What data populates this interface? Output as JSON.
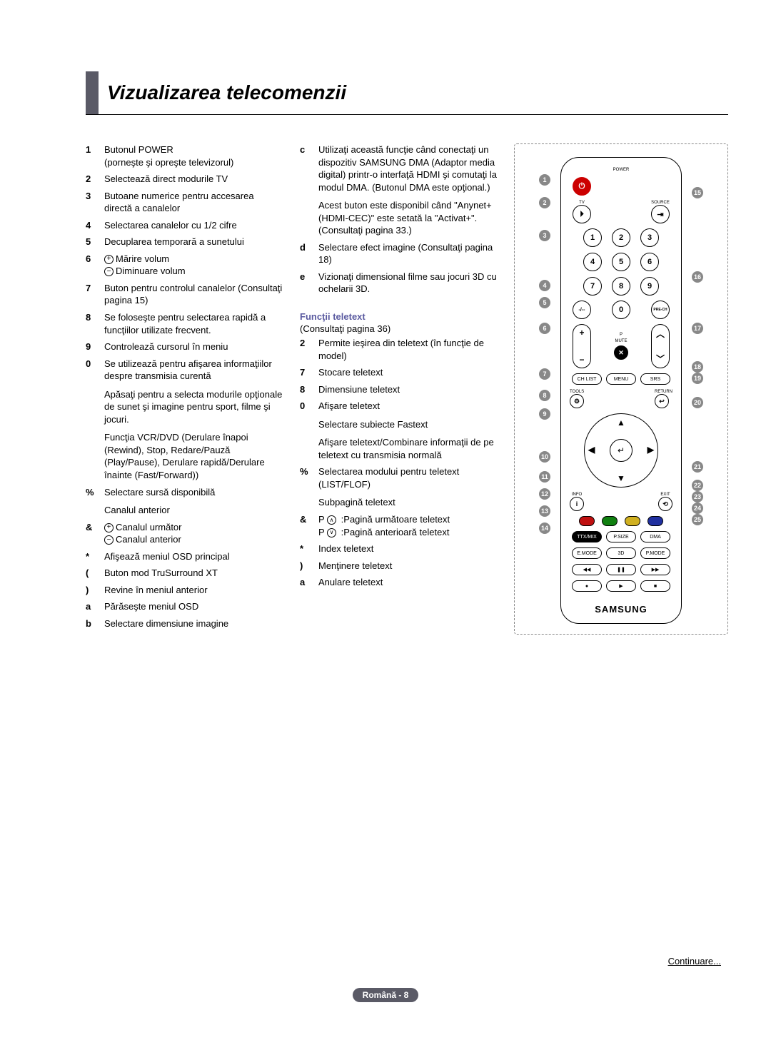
{
  "title": "Vizualizarea telecomenzii",
  "col1": [
    {
      "n": "1",
      "t": "Butonul POWER",
      "sub": "(porneşte şi opreşte televizorul)"
    },
    {
      "n": "2",
      "t": "Selectează direct modurile TV"
    },
    {
      "n": "3",
      "t": "Butoane numerice pentru accesarea directă a canalelor"
    },
    {
      "n": "4",
      "t": "Selectarea canalelor cu 1/2 cifre"
    },
    {
      "n": "5",
      "t": "Decuplarea temporară a sunetului"
    },
    {
      "n": "6",
      "t": "",
      "plusminus": true,
      "plus": "Mărire volum",
      "minus": "Diminuare volum"
    },
    {
      "n": "7",
      "t": "Buton pentru controlul canalelor (Consultaţi pagina 15)"
    },
    {
      "n": "8",
      "t": "Se foloseşte pentru selectarea rapidă a funcţiilor utilizate frecvent."
    },
    {
      "n": "9",
      "t": "Controlează cursorul în meniu"
    },
    {
      "n": "0",
      "t": "Se utilizează pentru afişarea informaţiilor despre transmisia curentă",
      "extra": [
        "Apăsaţi pentru a selecta modurile opţionale de sunet şi imagine pentru sport, filme şi jocuri.",
        "Funcţia VCR/DVD (Derulare înapoi (Rewind), Stop, Redare/Pauză (Play/Pause), Derulare rapidă/Derulare înainte (Fast/Forward))"
      ]
    },
    {
      "n": "%",
      "t": "Selectare sursă disponibilă",
      "extra": [
        "Canalul anterior"
      ]
    },
    {
      "n": "&",
      "t": "",
      "plusminus": true,
      "plus": "Canalul următor",
      "minus": "Canalul anterior"
    },
    {
      "n": "*",
      "t": "Afişează meniul OSD principal"
    },
    {
      "n": "(",
      "t": "Buton mod TruSurround XT"
    },
    {
      "n": ")",
      "t": "Revine în meniul anterior"
    },
    {
      "n": "a",
      "t": "Părăseşte meniul OSD"
    },
    {
      "n": "b",
      "t": "Selectare dimensiune imagine"
    }
  ],
  "col2_top": [
    {
      "n": "c",
      "t": "Utilizaţi această funcţie când conectaţi un dispozitiv SAMSUNG DMA (Adaptor media digital) printr-o interfaţă HDMI şi comutaţi la modul DMA. (Butonul DMA este opţional.)",
      "extra": [
        "Acest buton este disponibil când \"Anynet+ (HDMI-CEC)\" este setată la \"Activat+\". (Consultaţi pagina 33.)"
      ]
    },
    {
      "n": "d",
      "t": "Selectare efect imagine (Consultaţi pagina 18)"
    },
    {
      "n": "e",
      "t": "Vizionaţi dimensional filme sau jocuri 3D cu ochelarii 3D."
    }
  ],
  "teletext_head": "Funcţii teletext",
  "teletext_sub": "(Consultaţi pagina 36)",
  "col2_tel": [
    {
      "n": "2",
      "t": "Permite ieşirea din teletext (în funcţie de model)"
    },
    {
      "n": "7",
      "t": "Stocare teletext"
    },
    {
      "n": "8",
      "t": "Dimensiune teletext"
    },
    {
      "n": "0",
      "t": "Afişare teletext",
      "extra": [
        "Selectare subiecte Fastext",
        "Afişare teletext/Combinare informaţii de pe teletext cu transmisia normală"
      ]
    },
    {
      "n": "%",
      "t": "Selectarea modului pentru teletext (LIST/FLOF)",
      "extra": [
        "Subpagină teletext"
      ]
    },
    {
      "n": "&",
      "t": "",
      "pch": true,
      "up": "Pagină următoare teletext",
      "down": "Pagină anterioară teletext"
    },
    {
      "n": "*",
      "t": "Index teletext"
    },
    {
      "n": ")",
      "t": "Menţinere teletext"
    },
    {
      "n": "a",
      "t": "Anulare teletext"
    }
  ],
  "remote": {
    "power_label": "POWER",
    "tv_label": "TV",
    "source_label": "SOURCE",
    "numbers": [
      "1",
      "2",
      "3",
      "4",
      "5",
      "6",
      "7",
      "8",
      "9"
    ],
    "zero": "0",
    "dash": "-/--",
    "prech": "PRE-CH",
    "mute": "MUTE",
    "p": "P",
    "vol_plus": "+",
    "vol_minus": "−",
    "ch_up": "︿",
    "ch_down": "﹀",
    "chlist": "CH LIST",
    "menu": "MENU",
    "srs": "SRS",
    "tools": "TOOLS",
    "return": "RETURN",
    "info": "INFO",
    "exit": "EXIT",
    "center": "↵",
    "color_red": "#c01010",
    "color_green": "#108010",
    "color_yellow": "#d0b020",
    "color_blue": "#2030a0",
    "ttx": "TTX/MIX",
    "psize": "P.SIZE",
    "dma": "DMA",
    "emode": "E.MODE",
    "threeD": "3D",
    "pmode": "P.MODE",
    "rw": "◀◀",
    "pause": "❚❚",
    "ff": "▶▶",
    "rec": "●",
    "play": "▶",
    "stop": "■",
    "logo": "SAMSUNG"
  },
  "markers_left": [
    "1",
    "2",
    "3",
    "4",
    "5",
    "6",
    "7",
    "8",
    "9",
    "10",
    "11",
    "12",
    "13",
    "14"
  ],
  "markers_right": [
    "15",
    "16",
    "17",
    "18",
    "19",
    "20",
    "21",
    "22",
    "23",
    "24",
    "25"
  ],
  "continuare": "Continuare...",
  "lang": "Română - 8"
}
